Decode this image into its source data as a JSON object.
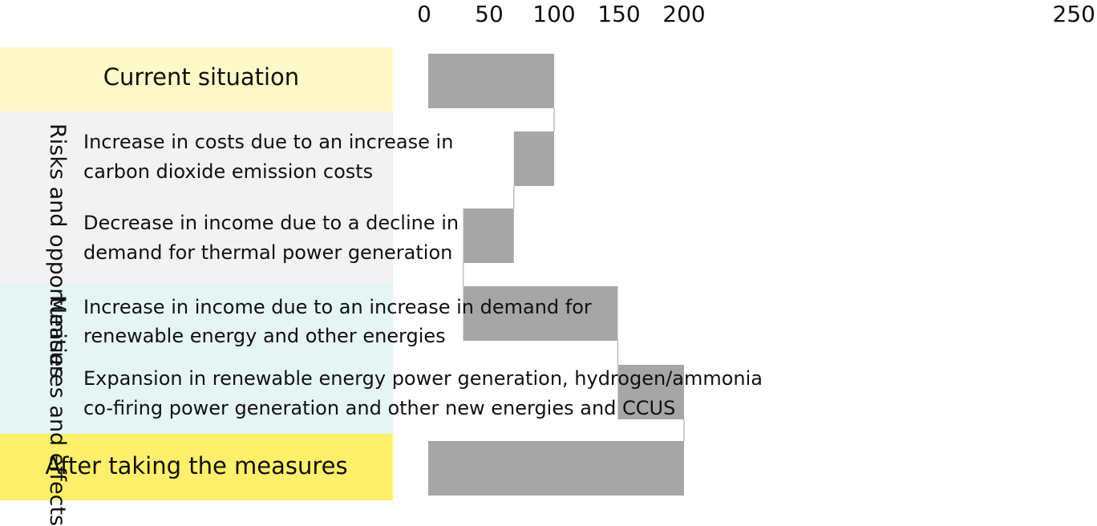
{
  "chart_data": {
    "type": "bar",
    "subtype": "waterfall",
    "x_ticks": [
      0,
      50,
      100,
      150,
      200,
      250
    ],
    "xlim": [
      0,
      250
    ],
    "grid": false,
    "sections": {
      "risks": "Risks and opportunities",
      "measures": "Measures and effects"
    },
    "categories": [
      {
        "key": "current",
        "label": "Current situation",
        "start": 0,
        "end": 100
      },
      {
        "key": "costs",
        "label_lines": [
          "Increase in costs due to an increase in",
          "carbon dioxide emission costs"
        ],
        "start": 100,
        "end": 69
      },
      {
        "key": "income_decline",
        "label_lines": [
          "Decrease in income due to a decline in",
          "demand for thermal power generation"
        ],
        "start": 69,
        "end": 30
      },
      {
        "key": "income_increase",
        "label_lines": [
          "Increase in income due to an increase in demand for",
          "renewable energy and other energies"
        ],
        "start": 30,
        "end": 149
      },
      {
        "key": "expansion",
        "label_lines": [
          "Expansion in renewable energy power generation, hydrogen/ammonia",
          "co-firing power generation and other new energies and CCUS"
        ],
        "start": 149,
        "end": 200
      },
      {
        "key": "after",
        "label": "After taking the measures",
        "start": 0,
        "end": 200
      }
    ],
    "colors": {
      "bar": "#a6a6a6",
      "current_bg": "#fff9c9",
      "risks_bg": "#f2f2f2",
      "measures_bg": "#e4f5f4",
      "after_bg": "#ffef6b",
      "connector": "#bfbfbf"
    }
  }
}
